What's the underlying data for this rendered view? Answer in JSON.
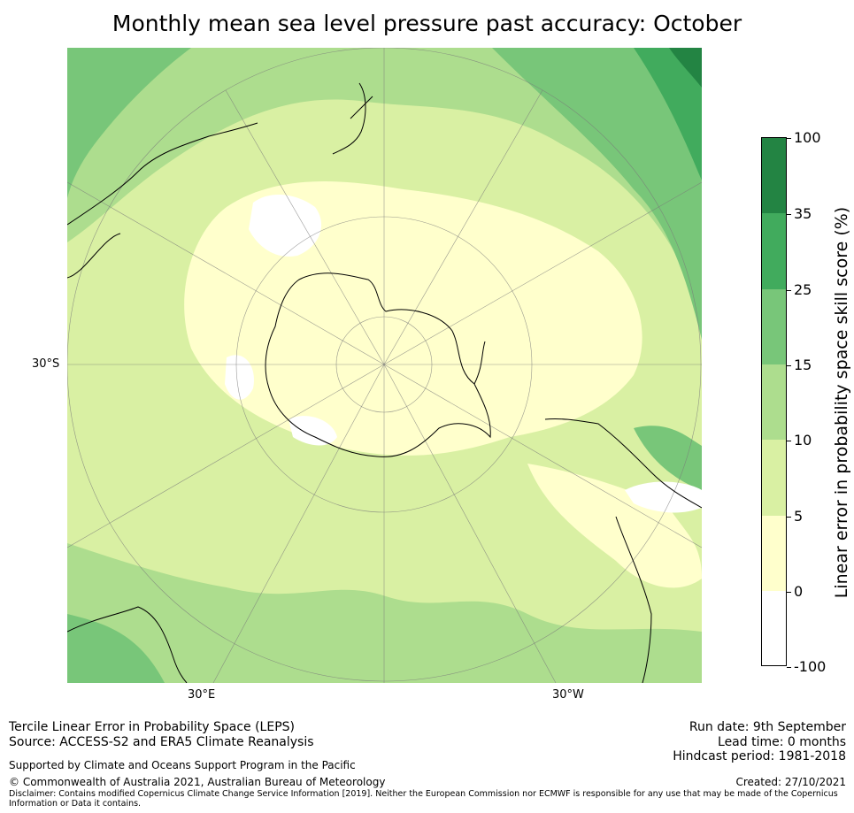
{
  "title": "Monthly mean sea level pressure past accuracy: October",
  "axes": {
    "lat_label": "30°S",
    "lon_labels": [
      "30°E",
      "30°W"
    ]
  },
  "legend": {
    "label": "Linear error in probability space skill score (%)",
    "ticks": [
      "100",
      "35",
      "25",
      "15",
      "10",
      "5",
      "0",
      "-100"
    ],
    "classes": [
      {
        "range": "-100 to 0",
        "color": "#ffffff"
      },
      {
        "range": "0 to 5",
        "color": "#ffffcc"
      },
      {
        "range": "5 to 10",
        "color": "#d9f0a3"
      },
      {
        "range": "10 to 15",
        "color": "#addd8e"
      },
      {
        "range": "15 to 25",
        "color": "#78c679"
      },
      {
        "range": "25 to 35",
        "color": "#41ab5d"
      },
      {
        "range": "35 to 100",
        "color": "#238443"
      }
    ]
  },
  "footer": {
    "line1": "Tercile Linear Error in Probability Space (LEPS)",
    "line2": "Source: ACCESS-S2 and ERA5 Climate Reanalysis",
    "support": "Supported by Climate and Oceans Support Program in the Pacific",
    "copyright": "© Commonwealth of Australia 2021, Australian Bureau of Meteorology",
    "disclaimer_1": "Disclaimer: Contains modified Copernicus Climate Change Service Information [2019]. Neither the European Commission nor ECMWF is responsible for any use that may be made of the Copernicus",
    "disclaimer_2": "Information or Data it contains.",
    "run_date": "Run date: 9th September",
    "lead_time": "Lead time: 0 months",
    "hindcast": "Hindcast period: 1981-2018",
    "created": "Created: 27/10/2021"
  }
}
